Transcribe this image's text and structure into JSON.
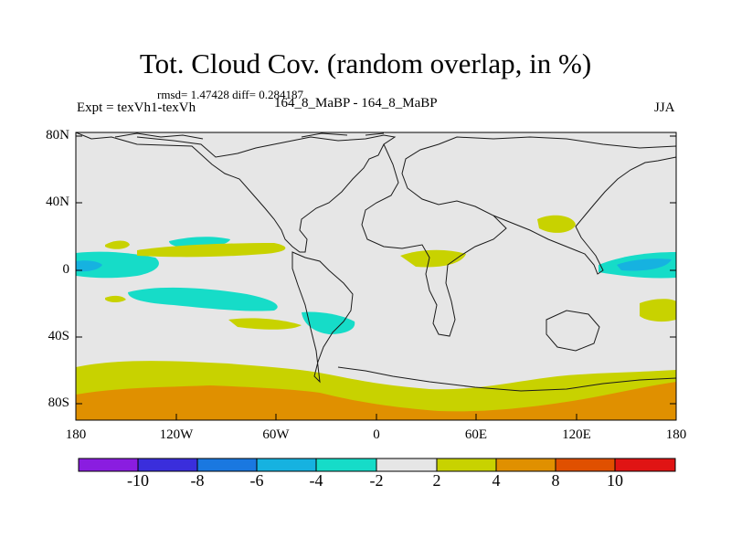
{
  "header": {
    "title": "Tot. Cloud Cov. (random overlap, in %)",
    "stats": "rmsd= 1.47428 diff= 0.284187",
    "experiment": "Expt = texVh1-texVh",
    "subtitle": "164_8_MaBP - 164_8_MaBP",
    "season": "JJA"
  },
  "map": {
    "lat_ticks": [
      "80N",
      "40N",
      "0",
      "40S",
      "80S"
    ],
    "lon_ticks": [
      "180",
      "120W",
      "60W",
      "0",
      "60E",
      "120E",
      "180"
    ],
    "lon_range": [
      -180,
      180
    ],
    "lat_range": [
      -90,
      90
    ]
  },
  "colorbar": {
    "labels": [
      "-10",
      "-8",
      "-6",
      "-4",
      "-2",
      "2",
      "4",
      "8",
      "10"
    ],
    "colors": [
      "#8a1de0",
      "#3a2edc",
      "#1a78e0",
      "#16b2e0",
      "#16dcc8",
      "#e6e6e6",
      "#c8d200",
      "#e09000",
      "#e05000",
      "#e01414"
    ]
  }
}
